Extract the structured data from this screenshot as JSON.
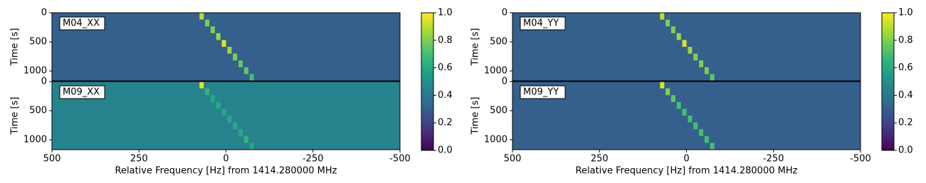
{
  "chart_data": [
    {
      "type": "heatmap",
      "xlabel": "Relative Frequency [Hz] from 1414.280000 MHz",
      "ylabel": "Time [s]",
      "xlim": [
        500,
        -500
      ],
      "xticks": [
        500,
        250,
        0,
        -250,
        -500
      ],
      "ylim": [
        1170,
        0
      ],
      "yticks": [
        0,
        500,
        1000
      ],
      "colormap": "viridis",
      "colorbar": {
        "lim": [
          0,
          1
        ],
        "ticks": [
          {
            "value": 0,
            "label": "0.0"
          },
          {
            "value": 0.2,
            "label": "0.2"
          },
          {
            "value": 0.4,
            "label": "0.4"
          },
          {
            "value": 0.6,
            "label": "0.6"
          },
          {
            "value": 0.8,
            "label": "0.8"
          },
          {
            "value": 1,
            "label": "1.0"
          }
        ]
      },
      "panels": [
        {
          "label": "M04_XX",
          "background": 0.3,
          "signal": {
            "x": [
              70,
              54,
              38,
              22,
              6,
              -10,
              -26,
              -42,
              -58,
              -74
            ],
            "y": [
              0,
              117,
              234,
              351,
              468,
              585,
              702,
              819,
              936,
              1053
            ],
            "values": [
              0.9,
              0.8,
              0.8,
              0.85,
              0.95,
              0.85,
              0.8,
              0.75,
              0.75,
              0.7
            ]
          }
        },
        {
          "label": "M09_XX",
          "background": 0.45,
          "signal": {
            "x": [
              70,
              54,
              38,
              22,
              6,
              -10,
              -26,
              -42,
              -58,
              -74
            ],
            "y": [
              0,
              117,
              234,
              351,
              468,
              585,
              702,
              819,
              936,
              1053
            ],
            "values": [
              0.95,
              0.65,
              0.6,
              0.6,
              0.6,
              0.6,
              0.6,
              0.6,
              0.65,
              0.6
            ]
          }
        }
      ]
    },
    {
      "type": "heatmap",
      "xlabel": "Relative Frequency [Hz] from 1414.280000 MHz",
      "ylabel": "Time [s]",
      "xlim": [
        500,
        -500
      ],
      "xticks": [
        500,
        250,
        0,
        -250,
        -500
      ],
      "ylim": [
        1170,
        0
      ],
      "yticks": [
        0,
        500,
        1000
      ],
      "colormap": "viridis",
      "colorbar": {
        "lim": [
          0,
          1
        ],
        "ticks": [
          {
            "value": 0,
            "label": "0.0"
          },
          {
            "value": 0.2,
            "label": "0.2"
          },
          {
            "value": 0.4,
            "label": "0.4"
          },
          {
            "value": 0.6,
            "label": "0.6"
          },
          {
            "value": 0.8,
            "label": "0.8"
          },
          {
            "value": 1,
            "label": "1.0"
          }
        ]
      },
      "panels": [
        {
          "label": "M04_YY",
          "background": 0.3,
          "signal": {
            "x": [
              70,
              54,
              38,
              22,
              6,
              -10,
              -26,
              -42,
              -58,
              -74
            ],
            "y": [
              0,
              117,
              234,
              351,
              468,
              585,
              702,
              819,
              936,
              1053
            ],
            "values": [
              0.9,
              0.8,
              0.8,
              0.85,
              0.95,
              0.85,
              0.8,
              0.8,
              0.8,
              0.75
            ]
          }
        },
        {
          "label": "M09_YY",
          "background": 0.3,
          "signal": {
            "x": [
              70,
              54,
              38,
              22,
              6,
              -10,
              -26,
              -42,
              -58,
              -74
            ],
            "y": [
              0,
              117,
              234,
              351,
              468,
              585,
              702,
              819,
              936,
              1053
            ],
            "values": [
              0.95,
              0.8,
              0.75,
              0.7,
              0.7,
              0.7,
              0.7,
              0.7,
              0.7,
              0.7
            ]
          }
        }
      ]
    }
  ]
}
